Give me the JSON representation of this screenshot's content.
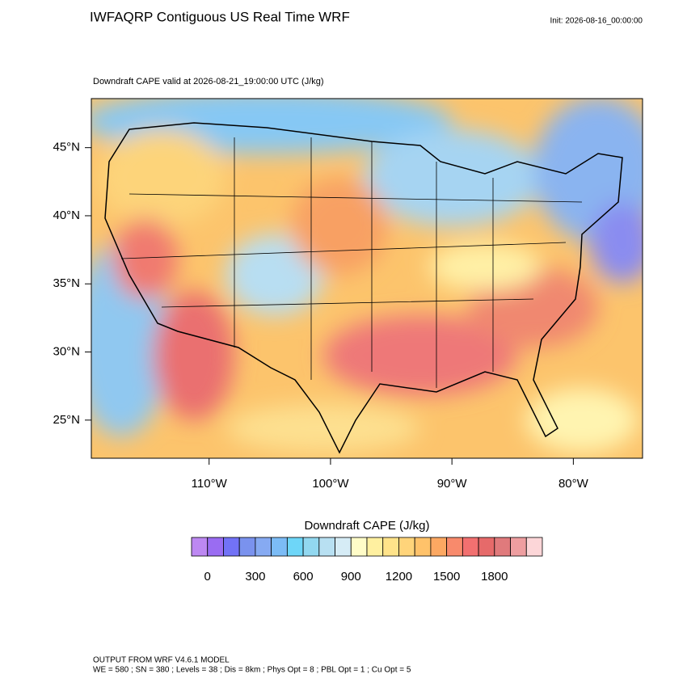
{
  "header": {
    "title": "IWFAQRP Contiguous US Real Time WRF",
    "init": "Init: 2026-08-16_00:00:00",
    "subtitle": "Downdraft CAPE valid at 2026-08-21_19:00:00 UTC   (J/kg)"
  },
  "map": {
    "xlim": [
      -119.7,
      -74.3
    ],
    "ylim": [
      22.2,
      48.6
    ],
    "xticks": [
      {
        "value": -110,
        "label": "110°W"
      },
      {
        "value": -100,
        "label": "100°W"
      },
      {
        "value": -90,
        "label": "90°W"
      },
      {
        "value": -80,
        "label": "80°W"
      }
    ],
    "yticks": [
      {
        "value": 25,
        "label": "25°N"
      },
      {
        "value": 30,
        "label": "30°N"
      },
      {
        "value": 35,
        "label": "35°N"
      },
      {
        "value": 40,
        "label": "40°N"
      },
      {
        "value": 45,
        "label": "45°N"
      }
    ]
  },
  "colorbar": {
    "title": "Downdraft CAPE  (J/kg)",
    "lim": [
      -100,
      2100
    ],
    "colors": [
      "#bd88f2",
      "#9a6cf2",
      "#7272f6",
      "#7a92ee",
      "#86aaf2",
      "#7cbcf6",
      "#6ed6f8",
      "#92d8f0",
      "#b8e0f2",
      "#d6ecf6",
      "#fffcc8",
      "#fff0a0",
      "#ffe38a",
      "#ffd47a",
      "#ffc26a",
      "#fca862",
      "#f88a6c",
      "#f27070",
      "#e66a6a",
      "#e07a7c",
      "#ee9ea0",
      "#fcd6d8"
    ],
    "ticks": [
      0,
      300,
      600,
      900,
      1200,
      1500,
      1800
    ]
  },
  "footer": {
    "line1": "OUTPUT FROM WRF V4.6.1 MODEL",
    "line2": "WE = 580 ; SN = 380 ; Levels = 38 ; Dis = 8km ; Phys Opt = 8 ; PBL Opt = 1 ; Cu Opt = 5"
  }
}
